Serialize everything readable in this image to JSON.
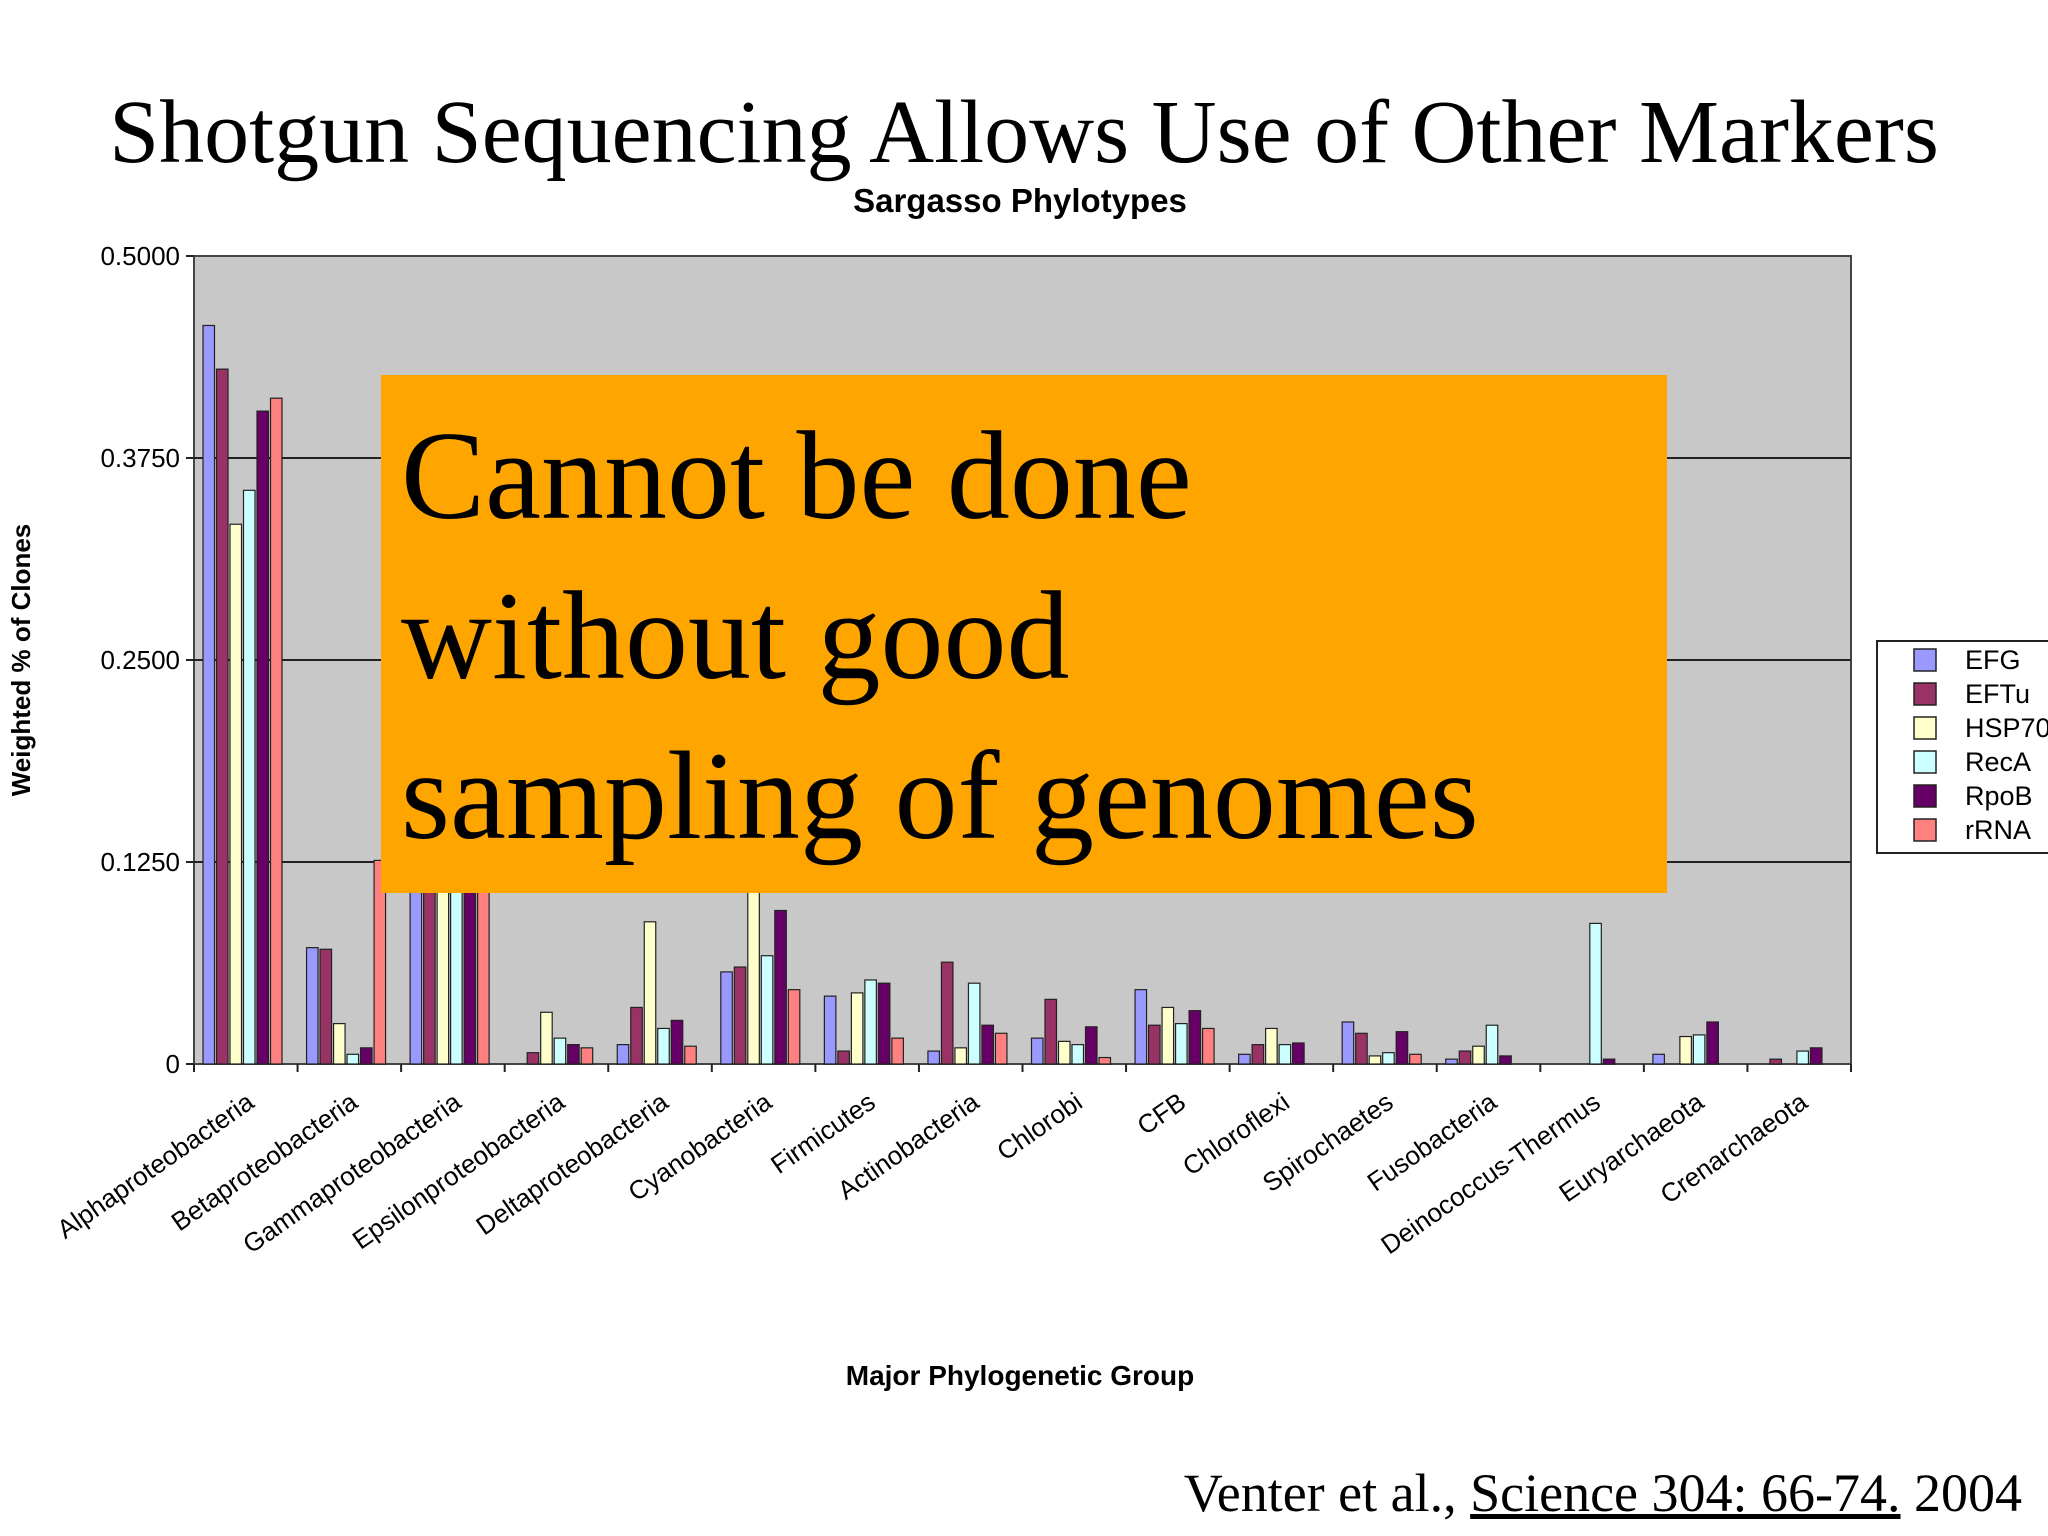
{
  "slide": {
    "title": "Shotgun Sequencing Allows Use of Other Markers",
    "callout_lines": [
      "Cannot be done",
      "without good",
      "sampling of genomes"
    ],
    "citation": {
      "authors": "Venter et al., ",
      "journal": "Science 304: 66-74.",
      "year": " 2004"
    }
  },
  "chart_data": {
    "type": "bar",
    "title": "Sargasso Phylotypes",
    "xlabel": "Major Phylogenetic Group",
    "ylabel": "Weighted % of Clones",
    "ylim": [
      0,
      0.5
    ],
    "yticks": [
      "0",
      "0.1250",
      "0.2500",
      "0.3750",
      "0.5000"
    ],
    "grid": true,
    "legend_position": "right",
    "categories": [
      "Alphaproteobacteria",
      "Betaproteobacteria",
      "Gammaproteobacteria",
      "Epsilonproteobacteria",
      "Deltaproteobacteria",
      "Cyanobacteria",
      "Firmicutes",
      "Actinobacteria",
      "Chlorobi",
      "CFB",
      "Chloroflexi",
      "Spirochaetes",
      "Fusobacteria",
      "Deinococcus-Thermus",
      "Euryarchaeota",
      "Crenarchaeota"
    ],
    "series": [
      {
        "name": "EFG",
        "color": "#9999FF",
        "values": [
          0.457,
          0.072,
          0.13,
          0.0,
          0.012,
          0.057,
          0.042,
          0.008,
          0.016,
          0.046,
          0.006,
          0.026,
          0.003,
          0.0,
          0.006,
          0.0
        ]
      },
      {
        "name": "EFTu",
        "color": "#993366",
        "values": [
          0.43,
          0.071,
          0.13,
          0.007,
          0.035,
          0.06,
          0.008,
          0.063,
          0.04,
          0.024,
          0.012,
          0.019,
          0.008,
          0.0,
          0.0,
          0.003
        ]
      },
      {
        "name": "HSP70",
        "color": "#FFFFCC",
        "values": [
          0.334,
          0.025,
          0.13,
          0.032,
          0.088,
          0.125,
          0.044,
          0.01,
          0.014,
          0.035,
          0.022,
          0.005,
          0.011,
          0.0,
          0.017,
          0.0
        ]
      },
      {
        "name": "RecA",
        "color": "#CCFFFF",
        "values": [
          0.355,
          0.006,
          0.13,
          0.016,
          0.022,
          0.067,
          0.052,
          0.05,
          0.012,
          0.025,
          0.012,
          0.007,
          0.024,
          0.087,
          0.018,
          0.008
        ]
      },
      {
        "name": "RpoB",
        "color": "#660066",
        "values": [
          0.404,
          0.01,
          0.13,
          0.012,
          0.027,
          0.095,
          0.05,
          0.024,
          0.023,
          0.033,
          0.013,
          0.02,
          0.005,
          0.003,
          0.026,
          0.01
        ]
      },
      {
        "name": "rRNA",
        "color": "#FF8080",
        "values": [
          0.412,
          0.126,
          0.13,
          0.01,
          0.011,
          0.046,
          0.016,
          0.019,
          0.004,
          0.022,
          0.0,
          0.006,
          0.0,
          0.0,
          0.0,
          0.0
        ]
      }
    ]
  }
}
